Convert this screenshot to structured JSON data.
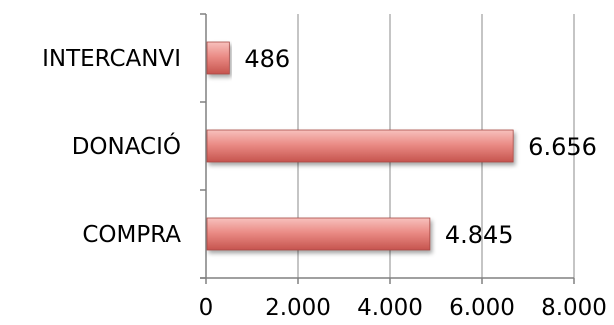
{
  "chart_data": {
    "type": "bar",
    "orientation": "horizontal",
    "categories": [
      "INTERCANVI",
      "DONACIÓ",
      "COMPRA"
    ],
    "values": [
      486,
      6656,
      4845
    ],
    "data_labels": [
      "486",
      "6.656",
      "4.845"
    ],
    "x_ticks": [
      0,
      2000,
      4000,
      6000,
      8000
    ],
    "x_tick_labels": [
      "0",
      "2.000",
      "4.000",
      "6.000",
      "8.000"
    ],
    "xlim": [
      0,
      8000
    ],
    "title": "",
    "xlabel": "",
    "ylabel": "",
    "grid": "vertical",
    "legend": "none",
    "colors": {
      "bar_light": "#f7c1bd",
      "bar_mid": "#ea8c86",
      "bar_dark": "#c6544e",
      "bar_edge": "#a84a45",
      "grid": "#a6a6a6",
      "axis": "#808080"
    }
  }
}
